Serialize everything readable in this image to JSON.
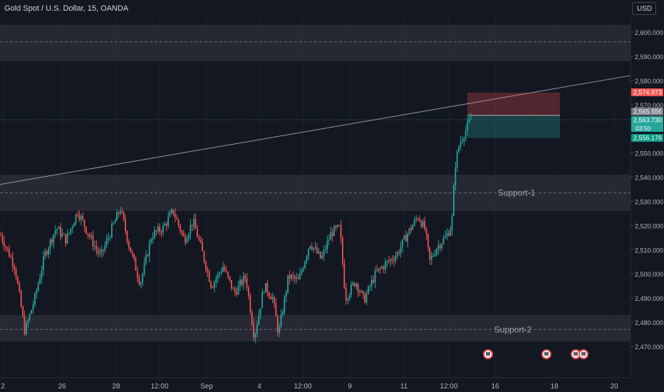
{
  "header": {
    "title": "Gold Spot / U.S. Dollar, 15, OANDA",
    "currency_button": "USD"
  },
  "colors": {
    "background": "#131722",
    "up": "#26a69a",
    "down": "#ef5350",
    "zone": "#2a2d37",
    "axis_text": "#b2b5be",
    "trendline": "#9598a1"
  },
  "chart_data": {
    "type": "candlestick",
    "ylim": [
      2466,
      2606
    ],
    "y_ticks": [
      "2,470.000",
      "2,480.000",
      "2,490.000",
      "2,500.000",
      "2,510.000",
      "2,520.000",
      "2,530.000",
      "2,540.000",
      "2,550.000",
      "2,560.000",
      "2,570.000",
      "2,580.000",
      "2,590.000",
      "2,600.000"
    ],
    "x_ticks": [
      "2",
      "26",
      "28",
      "12:00",
      "Sep",
      "4",
      "12:00",
      "9",
      "11",
      "12:00",
      "16",
      "18",
      "20"
    ],
    "zones": [
      {
        "label": "",
        "from": 2588,
        "to": 2603,
        "mid": 2596
      },
      {
        "label": "Support-1",
        "from": 2526,
        "to": 2541,
        "mid": 2533.5
      },
      {
        "label": "Support-2",
        "from": 2472,
        "to": 2483,
        "mid": 2477
      }
    ],
    "trendline": {
      "x_start": 0,
      "y_start": 2537,
      "x_end": 1,
      "y_end": 2582
    },
    "position": {
      "entry": 2565.556,
      "stop": 2574.973,
      "target": 2556.176
    },
    "price_labels": [
      {
        "value": "2,574.973",
        "type": "stop"
      },
      {
        "value": "2,565.556",
        "type": "entry"
      },
      {
        "value": "2,563.730",
        "type": "last"
      },
      {
        "value": "03:50",
        "type": "countdown"
      },
      {
        "value": "2,556.176",
        "type": "target"
      }
    ],
    "last_price": 2563.73,
    "anchors": [
      [
        0,
        2516
      ],
      [
        20,
        2503
      ],
      [
        34,
        2476
      ],
      [
        48,
        2490
      ],
      [
        62,
        2508
      ],
      [
        78,
        2519
      ],
      [
        92,
        2514
      ],
      [
        108,
        2526
      ],
      [
        124,
        2516
      ],
      [
        140,
        2507
      ],
      [
        158,
        2520
      ],
      [
        168,
        2527
      ],
      [
        180,
        2512
      ],
      [
        196,
        2496
      ],
      [
        212,
        2516
      ],
      [
        228,
        2519
      ],
      [
        242,
        2526
      ],
      [
        258,
        2514
      ],
      [
        270,
        2522
      ],
      [
        280,
        2512
      ],
      [
        296,
        2495
      ],
      [
        312,
        2503
      ],
      [
        328,
        2492
      ],
      [
        344,
        2499
      ],
      [
        356,
        2474
      ],
      [
        370,
        2495
      ],
      [
        382,
        2490
      ],
      [
        390,
        2475
      ],
      [
        404,
        2499
      ],
      [
        418,
        2497
      ],
      [
        434,
        2513
      ],
      [
        450,
        2506
      ],
      [
        464,
        2517
      ],
      [
        476,
        2519
      ],
      [
        484,
        2490
      ],
      [
        498,
        2497
      ],
      [
        510,
        2489
      ],
      [
        526,
        2500
      ],
      [
        540,
        2504
      ],
      [
        556,
        2508
      ],
      [
        570,
        2516
      ],
      [
        586,
        2524
      ],
      [
        596,
        2518
      ],
      [
        602,
        2505
      ],
      [
        612,
        2511
      ],
      [
        624,
        2515
      ],
      [
        633,
        2520
      ],
      [
        638,
        2545
      ],
      [
        644,
        2554
      ],
      [
        652,
        2559
      ],
      [
        660,
        2564
      ]
    ],
    "event_icons": [
      685,
      767,
      808,
      819
    ]
  }
}
